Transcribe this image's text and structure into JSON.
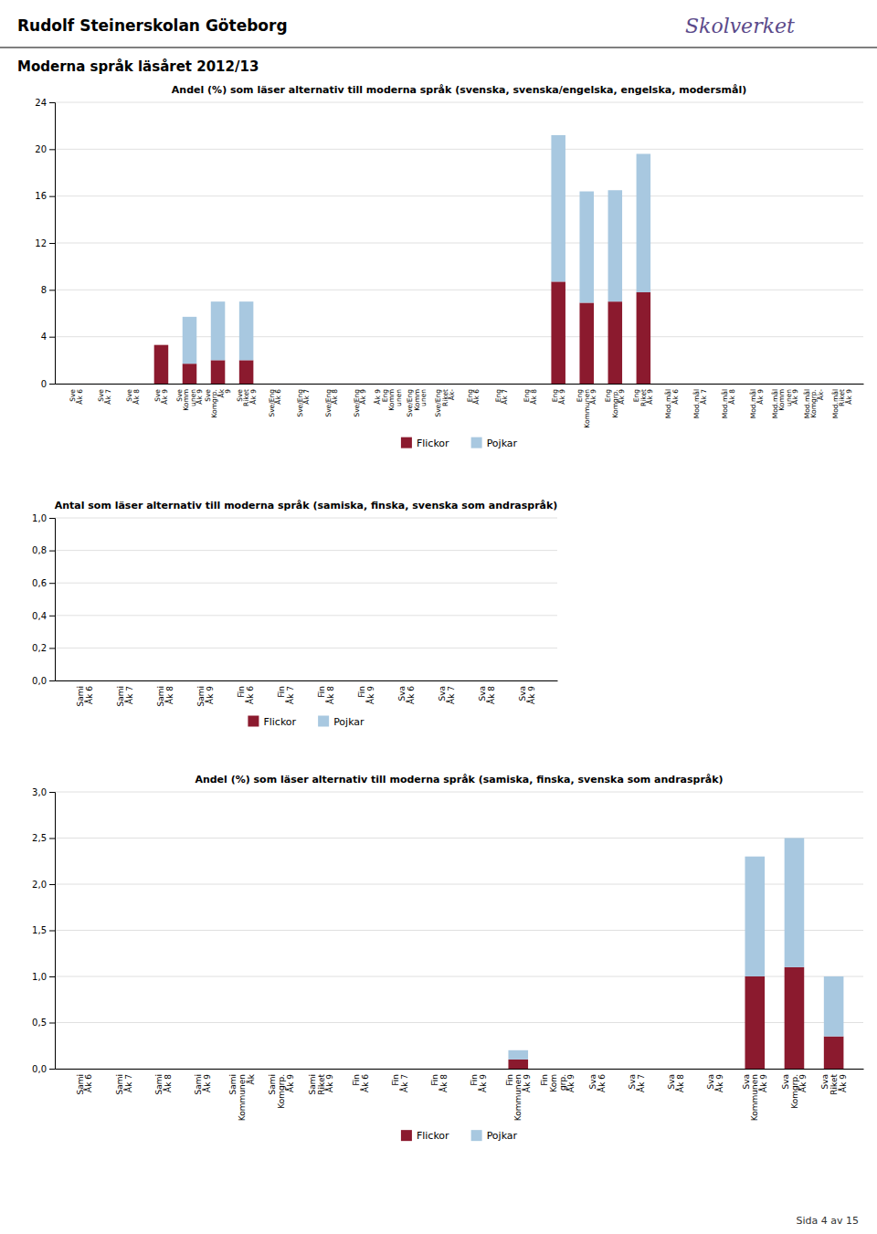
{
  "title": "Rudolf Steinerskolan Göteborg",
  "subtitle": "Moderna språk läsåret 2012/13",
  "annotations": [
    "Skolverket",
    "Sida 4 av 15"
  ],
  "chart_data": [
    {
      "type": "bar",
      "stacked": true,
      "grid": true,
      "legend": "bottom",
      "title": "Andel (%) som läser alternativ till moderna språk (svenska, svenska/engelska, engelska, modersmål)",
      "categories": [
        "Sve\nÅk 6",
        "Sve\nÅk 7",
        "Sve\nÅk 8",
        "Sve\nÅk 9",
        "Sve\nKomm\nunen\nÅk 9",
        "Sve\nKomgrp.\nÅk\n9",
        "Sve\nRiket\nÅk 9",
        "Sve/Eng\nÅk 6",
        "Sve/Eng\nÅk 7",
        "Sve/Eng\nÅk 8",
        "Sve/Eng\nÅk 9",
        "Åk 9\nEng\nKomm\nunen",
        "Sve/Eng\nKomm\nunen",
        "Sve/Eng\nRiket\nÅk-",
        "Eng\nÅk 6",
        "Eng\nÅk 7",
        "Eng\nÅk 8",
        "Eng\nÅk 9",
        "Eng\nKommunen\nÅk 9",
        "Eng\nKomgrp.\nÅk 9",
        "Eng\nRiket\nÅk 9",
        "Mod.mål\nÅk 6",
        "Mod.mål\nÅk 7",
        "Mod.mål\nÅk 8",
        "Mod.mål\nÅk 9",
        "Mod.mål\nKomm\nunen\nÅk 9",
        "Mod.mål\nKomgrp.\nÅk-",
        "Mod.mål\nRiket\nÅk 9"
      ],
      "series": [
        {
          "name": "Flickor",
          "color": "#8B1A2E",
          "values": [
            0,
            0,
            0,
            3.3,
            1.7,
            2.0,
            2.0,
            0,
            0,
            0,
            0,
            0,
            0,
            0,
            0,
            0,
            0,
            8.7,
            6.9,
            7.0,
            7.8,
            0,
            0,
            0,
            0,
            0,
            0,
            0
          ]
        },
        {
          "name": "Pojkar",
          "color": "#A8C8E0",
          "values": [
            0,
            0,
            0,
            0,
            4.0,
            5.0,
            5.0,
            0,
            0,
            0,
            0,
            0,
            0,
            0,
            0,
            0,
            0,
            12.5,
            9.5,
            9.5,
            11.8,
            0,
            0,
            0,
            0,
            0,
            0,
            0
          ]
        }
      ],
      "ylim": [
        0,
        24
      ],
      "yticks": [
        0,
        4,
        8,
        12,
        16,
        20,
        24
      ]
    },
    {
      "type": "bar",
      "stacked": true,
      "grid": true,
      "legend": "bottom",
      "title": "Antal som läser alternativ till moderna språk (samiska, finska, svenska som andraspråk)",
      "categories": [
        "Sami\nÅk 6",
        "Sami\nÅk 7",
        "Sami\nÅk 8",
        "Sami\nÅk 9",
        "Fin\nÅk 6",
        "Fin\nÅk 7",
        "Fin\nÅk 8",
        "Fin\nÅk 9",
        "Sva\nÅk 6",
        "Sva\nÅk 7",
        "Sva\nÅk 8",
        "Sva\nÅk 9"
      ],
      "series": [
        {
          "name": "Flickor",
          "color": "#8B1A2E",
          "values": [
            0,
            0,
            0,
            0,
            0,
            0,
            0,
            0,
            0,
            0,
            0,
            0
          ]
        },
        {
          "name": "Pojkar",
          "color": "#A8C8E0",
          "values": [
            0,
            0,
            0,
            0,
            0,
            0,
            0,
            0,
            0,
            0,
            0,
            0
          ]
        }
      ],
      "ylim": [
        0,
        1.0
      ],
      "yticks": [
        {
          "value": 0.0,
          "label": "0,0"
        },
        {
          "value": 0.2,
          "label": "0,2"
        },
        {
          "value": 0.4,
          "label": "0,4"
        },
        {
          "value": 0.6,
          "label": "0,6"
        },
        {
          "value": 0.8,
          "label": "0,8"
        },
        {
          "value": 1.0,
          "label": "1,0"
        }
      ]
    },
    {
      "type": "bar",
      "stacked": true,
      "grid": true,
      "legend": "bottom",
      "title": "Andel (%) som läser alternativ till moderna språk (samiska, finska, svenska som andraspråk)",
      "categories": [
        "Sami\nÅk 6",
        "Sami\nÅk 7",
        "Sami\nÅk 8",
        "Sami\nÅk 9",
        "Sami\nKommunen\nÅk",
        "Sami\nKomgrp.\nÅk 9",
        "Sami\nRiket\nÅk 9",
        "Fin\nÅk 6",
        "Fin\nÅk 7",
        "Fin\nÅk 8",
        "Fin\nÅk 9",
        "Fin\nKommunen\nÅk 9",
        "Fin\nKom\ngrp.\nÅk 9",
        "Sva\nÅk 6",
        "Sva\nÅk 7",
        "Sva\nÅk 8",
        "Sva\nÅk 9",
        "Sva\nKommunen\nÅk 9",
        "Sva\nKomgrp.\nÅk 9",
        "Sva\nRiket\nÅk 9"
      ],
      "series": [
        {
          "name": "Flickor",
          "color": "#8B1A2E",
          "values": [
            0,
            0,
            0,
            0,
            0,
            0,
            0,
            0,
            0,
            0,
            0,
            0.1,
            0,
            0,
            0,
            0,
            0,
            1.0,
            1.1,
            0.35
          ]
        },
        {
          "name": "Pojkar",
          "color": "#A8C8E0",
          "values": [
            0,
            0,
            0,
            0,
            0,
            0,
            0,
            0,
            0,
            0,
            0,
            0.1,
            0,
            0,
            0,
            0,
            0,
            1.3,
            1.4,
            0.65
          ]
        }
      ],
      "ylim": [
        0,
        3.0
      ],
      "yticks": [
        {
          "value": 0.0,
          "label": "0,0"
        },
        {
          "value": 0.5,
          "label": "0,5"
        },
        {
          "value": 1.0,
          "label": "1,0"
        },
        {
          "value": 1.5,
          "label": "1,5"
        },
        {
          "value": 2.0,
          "label": "2,0"
        },
        {
          "value": 2.5,
          "label": "2,5"
        },
        {
          "value": 3.0,
          "label": "3,0"
        }
      ]
    }
  ]
}
